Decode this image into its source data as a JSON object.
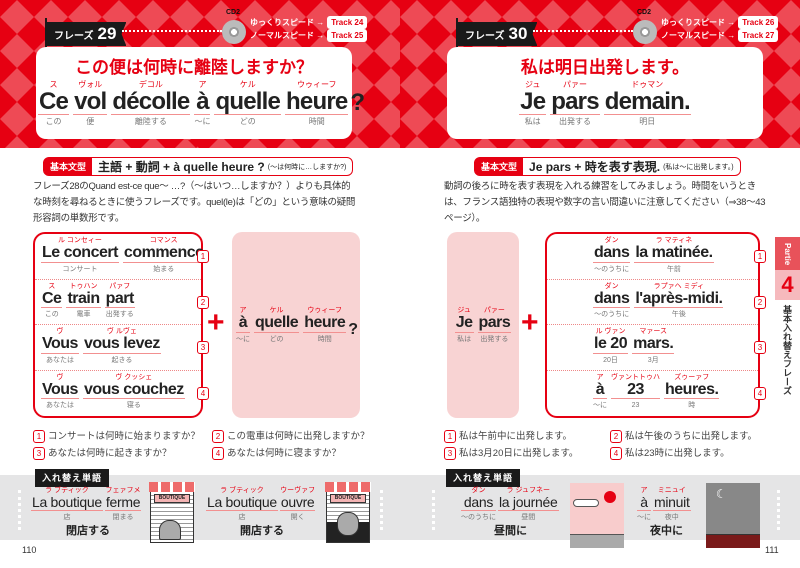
{
  "colors": {
    "accent": "#e60012",
    "pink": "#f8d3d3",
    "band": "#e5e5e6"
  },
  "left": {
    "phrase_label": "フレーズ",
    "phrase_num": "29",
    "cd": "CD2",
    "slow": "ゆっくりスピード →",
    "slow_track": "Track 24",
    "normal": "ノーマルスピード →",
    "normal_track": "Track 25",
    "title": "この便は何時に離陸しますか？",
    "sentence": [
      {
        "ruby": "ス",
        "fr": "Ce",
        "gloss": "この"
      },
      {
        "ruby": "ヴォル",
        "fr": "vol",
        "gloss": "便"
      },
      {
        "ruby": "デコル",
        "fr": "décolle",
        "gloss": "離陸する"
      },
      {
        "ruby": "ア",
        "fr": "à",
        "gloss": "～に"
      },
      {
        "ruby": "ケル",
        "fr": "quelle",
        "gloss": "どの"
      },
      {
        "ruby": "ウゥィーフ",
        "fr": "heure",
        "gloss": "時間"
      }
    ],
    "sentence_end": "?",
    "kihon_tag": "基本文型",
    "kihon_pattern": "主語 + 動詞 + à quelle heure ?",
    "kihon_note": "(～は何時に…しますか?)",
    "paragraph": "フレーズ28のQuand est-ce que～ …?（～はいつ…しますか？）よりも具体的な時刻を尋ねるときに使うフレーズです。quel(le)は「どの」という意味の疑問形容詞の単数形です。",
    "rows": [
      [
        {
          "ruby": "ル コンセィー",
          "fr": "Le concert",
          "gloss": "コンサート"
        },
        {
          "ruby": "コマンス",
          "fr": "commence",
          "gloss": "始まる"
        }
      ],
      [
        {
          "ruby": "ス",
          "fr": "Ce",
          "gloss": "この"
        },
        {
          "ruby": "トゥハン",
          "fr": "train",
          "gloss": "電車"
        },
        {
          "ruby": "パァフ",
          "fr": "part",
          "gloss": "出発する"
        }
      ],
      [
        {
          "ruby": "ヴ",
          "fr": "Vous",
          "gloss": "あなたは"
        },
        {
          "ruby": "ヴ ルヴェ",
          "fr": "vous levez",
          "gloss": "起きる"
        }
      ],
      [
        {
          "ruby": "ヴ",
          "fr": "Vous",
          "gloss": "あなたは"
        },
        {
          "ruby": "ヴ クッシェ",
          "fr": "vous couchez",
          "gloss": "寝る"
        }
      ]
    ],
    "numbers": [
      "1",
      "2",
      "3",
      "4"
    ],
    "fixed": [
      {
        "ruby": "ア",
        "fr": "à",
        "gloss": "～に"
      },
      {
        "ruby": "ケル",
        "fr": "quelle",
        "gloss": "どの"
      },
      {
        "ruby": "ウゥィーフ",
        "fr": "heure",
        "gloss": "時間"
      }
    ],
    "fixed_end": "?",
    "plus": "+",
    "translations": [
      "コンサートは何時に始まりますか？",
      "この電車は何時に出発しますか？",
      "あなたは何時に起きますか？",
      "あなたは何時に寝ますか？"
    ],
    "irekae": "入れ替え単語",
    "band_items": [
      {
        "words": [
          {
            "ruby": "ラ ブティック",
            "fr": "La boutique",
            "gloss": "店"
          },
          {
            "ruby": "フェァフメ",
            "fr": "ferme",
            "gloss": "閉まる"
          }
        ],
        "caption": "閉店する",
        "sign": "BOUTIQUE"
      },
      {
        "words": [
          {
            "ruby": "ラ ブティック",
            "fr": "La boutique",
            "gloss": "店"
          },
          {
            "ruby": "ウーヴァフ",
            "fr": "ouvre",
            "gloss": "開く"
          }
        ],
        "caption": "開店する",
        "sign": "BOUTIQUE"
      }
    ],
    "page_number": "110"
  },
  "right": {
    "phrase_label": "フレーズ",
    "phrase_num": "30",
    "cd": "CD2",
    "slow": "ゆっくりスピード →",
    "slow_track": "Track 26",
    "normal": "ノーマルスピード →",
    "normal_track": "Track 27",
    "title": "私は明日出発します。",
    "sentence": [
      {
        "ruby": "ジュ",
        "fr": "Je",
        "gloss": "私は"
      },
      {
        "ruby": "パァー",
        "fr": "pars",
        "gloss": "出発する"
      },
      {
        "ruby": "ドゥマン",
        "fr": "demain.",
        "gloss": "明日"
      }
    ],
    "kihon_tag": "基本文型",
    "kihon_pattern": "Je pars + 時を表す表現.",
    "kihon_note": "(私は～に出発します。)",
    "paragraph": "動詞の後ろに時を表す表現を入れる練習をしてみましょう。時間をいうときは、フランス語独特の表現や数字の言い間違いに注意してください（⇒38～43ページ）。",
    "fixed": [
      {
        "ruby": "ジュ",
        "fr": "Je",
        "gloss": "私は"
      },
      {
        "ruby": "パァー",
        "fr": "pars",
        "gloss": "出発する"
      }
    ],
    "plus": "+",
    "rows": [
      [
        {
          "ruby": "ダン",
          "fr": "dans",
          "gloss": "～のうちに"
        },
        {
          "ruby": "ラ マティネ",
          "fr": "la matinée.",
          "gloss": "午前"
        }
      ],
      [
        {
          "ruby": "ダン",
          "fr": "dans",
          "gloss": "～のうちに"
        },
        {
          "ruby": "ラプァヘ ミディ",
          "fr": "l'après-midi.",
          "gloss": "午後"
        }
      ],
      [
        {
          "ruby": "ル ヴァン",
          "fr": "le 20",
          "gloss": "20日"
        },
        {
          "ruby": "マァース",
          "fr": "mars.",
          "gloss": "3月"
        }
      ],
      [
        {
          "ruby": "ア",
          "fr": "à",
          "gloss": "～に"
        },
        {
          "ruby": "ヴァントトゥハ",
          "fr": "23",
          "gloss": "23"
        },
        {
          "ruby": "ズゥーァフ",
          "fr": "heures.",
          "gloss": "時"
        }
      ]
    ],
    "numbers": [
      "1",
      "2",
      "3",
      "4"
    ],
    "translations": [
      "私は午前中に出発します。",
      "私は午後のうちに出発します。",
      "私は3月20日に出発します。",
      "私は23時に出発します。"
    ],
    "irekae": "入れ替え単語",
    "band_items": [
      {
        "words": [
          {
            "ruby": "ダン",
            "fr": "dans",
            "gloss": "～のうちに"
          },
          {
            "ruby": "ラ ジュフネー",
            "fr": "la journée",
            "gloss": "昼間"
          }
        ],
        "caption": "昼間に"
      },
      {
        "words": [
          {
            "ruby": "ア",
            "fr": "à",
            "gloss": "～に"
          },
          {
            "ruby": "ミニュイ",
            "fr": "minuit",
            "gloss": "夜中"
          }
        ],
        "caption": "夜中に"
      }
    ],
    "side_tab": {
      "label": "Partie",
      "num": "4",
      "text": "基本入れ替えフレーズ"
    },
    "page_number": "111"
  }
}
